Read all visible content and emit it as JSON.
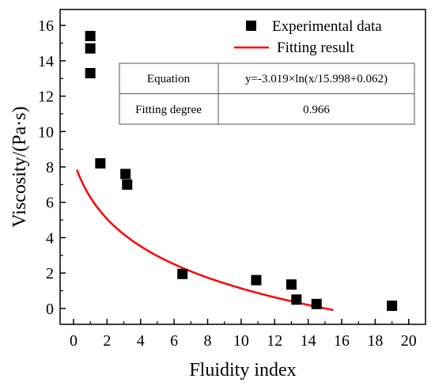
{
  "chart_data": {
    "type": "scatter",
    "xlabel": "Fluidity index",
    "ylabel": "Viscosity/(Pa·s)",
    "xlim": [
      -0.8,
      21
    ],
    "ylim": [
      -0.9,
      16.9
    ],
    "xticks": [
      0,
      2,
      4,
      6,
      8,
      10,
      12,
      14,
      16,
      18,
      20
    ],
    "yticks": [
      0,
      2,
      4,
      6,
      8,
      10,
      12,
      14,
      16
    ],
    "grid": false,
    "legend_position": "top-right",
    "series": [
      {
        "name": "Experimental data",
        "kind": "scatter",
        "marker": "square",
        "color": "#000000",
        "points": [
          {
            "x": 1.0,
            "y": 15.4
          },
          {
            "x": 1.0,
            "y": 14.7
          },
          {
            "x": 1.0,
            "y": 13.3
          },
          {
            "x": 1.6,
            "y": 8.2
          },
          {
            "x": 3.1,
            "y": 7.6
          },
          {
            "x": 3.2,
            "y": 7.0
          },
          {
            "x": 6.5,
            "y": 1.95
          },
          {
            "x": 10.9,
            "y": 1.6
          },
          {
            "x": 13.0,
            "y": 1.35
          },
          {
            "x": 13.3,
            "y": 0.5
          },
          {
            "x": 14.5,
            "y": 0.25
          },
          {
            "x": 19.0,
            "y": 0.15
          }
        ]
      },
      {
        "name": "Fitting result",
        "kind": "line",
        "color": "#ff0000",
        "x_range": [
          0.2,
          15.5
        ],
        "formula": {
          "a": -3.019,
          "b": 15.998,
          "c": 0.062
        }
      }
    ],
    "table": {
      "rows": [
        {
          "label": "Equation",
          "value": "y=-3.019×ln(x/15.998+0.062)"
        },
        {
          "label": "Fitting degree",
          "value": "0.966"
        }
      ]
    }
  }
}
